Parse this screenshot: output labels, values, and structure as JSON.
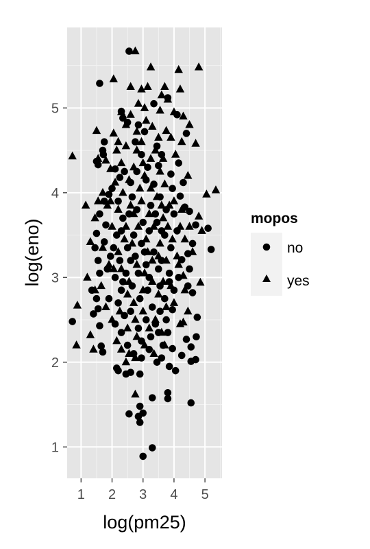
{
  "chart_data": {
    "type": "scatter",
    "title": "",
    "xlabel": "log(pm25)",
    "ylabel": "log(eno)",
    "xlim": [
      0.55,
      5.55
    ],
    "ylim": [
      0.63,
      5.95
    ],
    "xticks": [
      1,
      2,
      3,
      4,
      5
    ],
    "yticks": [
      1,
      2,
      3,
      4,
      5
    ],
    "grid": true,
    "panel_background": "#e5e5e5",
    "grid_color": "#ffffff",
    "point_color": "#000000",
    "legend": {
      "title": "mopos",
      "position": "right",
      "entries": [
        {
          "label": "no",
          "shape": "circle"
        },
        {
          "label": "yes",
          "shape": "triangle"
        }
      ]
    },
    "series": [
      {
        "name": "no",
        "shape": "circle",
        "points": [
          [
            2.55,
            5.67
          ],
          [
            1.6,
            5.29
          ],
          [
            2.3,
            4.96
          ],
          [
            2.35,
            4.88
          ],
          [
            2.5,
            4.83
          ],
          [
            2.85,
            4.8
          ],
          [
            3.35,
            5.05
          ],
          [
            3.8,
            5.12
          ],
          [
            4.1,
            4.92
          ],
          [
            4.4,
            4.7
          ],
          [
            1.75,
            4.6
          ],
          [
            1.7,
            4.5
          ],
          [
            1.72,
            4.45
          ],
          [
            1.5,
            4.37
          ],
          [
            1.55,
            4.33
          ],
          [
            2.1,
            4.28
          ],
          [
            2.25,
            4.18
          ],
          [
            2.6,
            4.12
          ],
          [
            3.1,
            4.15
          ],
          [
            3.5,
            4.32
          ],
          [
            3.9,
            4.22
          ],
          [
            4.3,
            4.12
          ],
          [
            4.2,
            3.96
          ],
          [
            4.35,
            3.83
          ],
          [
            4.5,
            3.78
          ],
          [
            4.7,
            3.62
          ],
          [
            5.1,
            3.58
          ],
          [
            5.2,
            3.33
          ],
          [
            4.6,
            3.4
          ],
          [
            4.45,
            3.28
          ],
          [
            4.25,
            3.21
          ],
          [
            4.5,
            3.1
          ],
          [
            4.45,
            2.9
          ],
          [
            4.6,
            2.82
          ],
          [
            4.75,
            2.53
          ],
          [
            4.72,
            2.3
          ],
          [
            4.4,
            2.27
          ],
          [
            4.55,
            2.18
          ],
          [
            4.7,
            2.03
          ],
          [
            4.55,
            2.01
          ],
          [
            4.25,
            2.08
          ],
          [
            3.95,
            2.16
          ],
          [
            4.05,
            1.9
          ],
          [
            3.85,
            1.95
          ],
          [
            4.55,
            1.52
          ],
          [
            3.8,
            1.64
          ],
          [
            3.8,
            1.57
          ],
          [
            3.3,
            1.58
          ],
          [
            3.0,
            1.4
          ],
          [
            2.9,
            1.48
          ],
          [
            2.85,
            1.36
          ],
          [
            2.9,
            1.29
          ],
          [
            3.3,
            0.99
          ],
          [
            3.0,
            0.89
          ],
          [
            2.55,
            1.39
          ],
          [
            2.6,
            1.88
          ],
          [
            2.9,
            1.86
          ],
          [
            2.45,
            1.86
          ],
          [
            2.2,
            1.9
          ],
          [
            2.15,
            1.93
          ],
          [
            1.7,
            2.12
          ],
          [
            1.65,
            2.19
          ],
          [
            1.6,
            2.43
          ],
          [
            1.4,
            2.57
          ],
          [
            1.55,
            2.63
          ],
          [
            0.72,
            2.48
          ],
          [
            1.5,
            2.75
          ],
          [
            1.35,
            2.85
          ],
          [
            1.6,
            3.05
          ],
          [
            1.55,
            3.2
          ],
          [
            1.45,
            3.35
          ],
          [
            1.75,
            3.42
          ],
          [
            1.5,
            3.52
          ],
          [
            1.8,
            3.62
          ],
          [
            1.6,
            3.75
          ],
          [
            1.75,
            3.9
          ],
          [
            1.9,
            3.98
          ],
          [
            2.0,
            4.05
          ],
          [
            2.2,
            3.9
          ],
          [
            2.35,
            3.7
          ],
          [
            2.15,
            3.5
          ],
          [
            2.05,
            3.35
          ],
          [
            2.25,
            3.2
          ],
          [
            2.1,
            3.0
          ],
          [
            2.3,
            2.85
          ],
          [
            2.2,
            2.7
          ],
          [
            2.4,
            2.55
          ],
          [
            2.1,
            2.45
          ],
          [
            2.3,
            2.35
          ],
          [
            2.5,
            2.2
          ],
          [
            2.7,
            2.1
          ],
          [
            2.95,
            2.05
          ],
          [
            3.2,
            2.15
          ],
          [
            3.45,
            2.0
          ],
          [
            3.65,
            2.2
          ],
          [
            3.5,
            2.35
          ],
          [
            3.75,
            2.5
          ],
          [
            3.95,
            2.62
          ],
          [
            3.7,
            2.75
          ],
          [
            3.55,
            2.9
          ],
          [
            3.85,
            3.05
          ],
          [
            3.6,
            3.2
          ],
          [
            3.9,
            3.35
          ],
          [
            3.7,
            3.5
          ],
          [
            3.45,
            3.65
          ],
          [
            3.75,
            3.8
          ],
          [
            3.55,
            3.95
          ],
          [
            3.35,
            4.1
          ],
          [
            3.15,
            4.3
          ],
          [
            2.95,
            4.45
          ],
          [
            2.75,
            4.6
          ],
          [
            3.05,
            4.72
          ],
          [
            3.45,
            4.55
          ],
          [
            3.6,
            4.45
          ],
          [
            2.65,
            3.95
          ],
          [
            2.8,
            3.8
          ],
          [
            3.0,
            3.65
          ],
          [
            2.7,
            3.5
          ],
          [
            2.95,
            3.4
          ],
          [
            3.2,
            3.55
          ],
          [
            3.35,
            3.3
          ],
          [
            3.1,
            3.15
          ],
          [
            2.85,
            3.05
          ],
          [
            2.6,
            3.2
          ],
          [
            2.5,
            3.35
          ],
          [
            2.45,
            3.05
          ],
          [
            2.65,
            2.9
          ],
          [
            2.9,
            2.75
          ],
          [
            3.15,
            2.85
          ],
          [
            3.3,
            2.65
          ],
          [
            3.1,
            2.5
          ],
          [
            2.85,
            2.4
          ],
          [
            2.6,
            2.6
          ],
          [
            3.4,
            2.45
          ],
          [
            3.25,
            2.3
          ],
          [
            3.55,
            2.6
          ],
          [
            3.8,
            2.35
          ],
          [
            4.0,
            2.85
          ],
          [
            4.15,
            3.0
          ],
          [
            4.1,
            3.55
          ],
          [
            4.0,
            3.75
          ],
          [
            3.95,
            4.05
          ],
          [
            4.15,
            4.35
          ],
          [
            2.4,
            4.25
          ],
          [
            2.8,
            4.25
          ],
          [
            3.25,
            3.85
          ],
          [
            3.5,
            3.1
          ],
          [
            3.2,
            3.0
          ],
          [
            3.05,
            3.3
          ],
          [
            2.75,
            3.25
          ],
          [
            2.55,
            3.75
          ],
          [
            2.3,
            3.55
          ],
          [
            3.4,
            3.75
          ],
          [
            3.6,
            3.55
          ],
          [
            3.85,
            2.95
          ],
          [
            2.35,
            2.95
          ],
          [
            1.9,
            2.75
          ],
          [
            1.95,
            3.25
          ],
          [
            1.85,
            3.1
          ],
          [
            2.95,
            2.25
          ],
          [
            3.6,
            2.05
          ]
        ]
      },
      {
        "name": "yes",
        "shape": "triangle",
        "points": [
          [
            2.75,
            5.67
          ],
          [
            3.25,
            5.48
          ],
          [
            4.15,
            5.45
          ],
          [
            4.8,
            5.48
          ],
          [
            2.05,
            5.34
          ],
          [
            2.6,
            5.25
          ],
          [
            2.95,
            5.22
          ],
          [
            3.15,
            5.25
          ],
          [
            3.7,
            5.25
          ],
          [
            4.2,
            5.22
          ],
          [
            3.6,
            5.15
          ],
          [
            3.8,
            5.1
          ],
          [
            2.85,
            5.05
          ],
          [
            3.05,
            5.0
          ],
          [
            2.3,
            4.95
          ],
          [
            2.6,
            4.92
          ],
          [
            3.55,
            4.97
          ],
          [
            4.0,
            4.95
          ],
          [
            4.3,
            4.9
          ],
          [
            3.1,
            4.85
          ],
          [
            2.45,
            4.8
          ],
          [
            1.5,
            4.73
          ],
          [
            2.05,
            4.7
          ],
          [
            2.8,
            4.72
          ],
          [
            3.3,
            4.78
          ],
          [
            3.75,
            4.73
          ],
          [
            3.9,
            4.65
          ],
          [
            4.7,
            4.58
          ],
          [
            0.72,
            4.43
          ],
          [
            1.55,
            4.4
          ],
          [
            1.8,
            4.38
          ],
          [
            2.15,
            4.5
          ],
          [
            2.45,
            4.55
          ],
          [
            2.95,
            4.6
          ],
          [
            3.4,
            4.5
          ],
          [
            3.65,
            4.4
          ],
          [
            4.05,
            4.45
          ],
          [
            1.95,
            4.28
          ],
          [
            2.3,
            4.35
          ],
          [
            2.7,
            4.3
          ],
          [
            3.05,
            4.2
          ],
          [
            3.55,
            4.25
          ],
          [
            4.45,
            4.2
          ],
          [
            5.35,
            4.03
          ],
          [
            5.05,
            3.98
          ],
          [
            4.8,
            3.72
          ],
          [
            4.9,
            3.55
          ],
          [
            4.6,
            3.3
          ],
          [
            4.3,
            3.02
          ],
          [
            4.85,
            2.94
          ],
          [
            4.3,
            2.47
          ],
          [
            4.2,
            2.45
          ],
          [
            3.7,
            2.2
          ],
          [
            2.75,
            1.62
          ],
          [
            2.75,
            2.05
          ],
          [
            2.55,
            2.1
          ],
          [
            2.45,
            2.0
          ],
          [
            2.15,
            2.25
          ],
          [
            2.3,
            2.15
          ],
          [
            1.4,
            2.15
          ],
          [
            0.85,
            2.2
          ],
          [
            1.3,
            2.32
          ],
          [
            0.88,
            2.67
          ],
          [
            1.2,
            3.0
          ],
          [
            1.45,
            2.85
          ],
          [
            1.3,
            3.42
          ],
          [
            1.45,
            3.7
          ],
          [
            1.15,
            3.85
          ],
          [
            1.55,
            3.9
          ],
          [
            1.7,
            4.0
          ],
          [
            1.85,
            3.85
          ],
          [
            2.1,
            4.12
          ],
          [
            2.35,
            4.0
          ],
          [
            2.55,
            4.15
          ],
          [
            2.9,
            4.05
          ],
          [
            3.25,
            4.05
          ],
          [
            3.7,
            4.1
          ],
          [
            4.0,
            3.9
          ],
          [
            4.25,
            3.8
          ],
          [
            4.5,
            3.6
          ],
          [
            4.35,
            3.45
          ],
          [
            4.1,
            3.25
          ],
          [
            4.35,
            2.85
          ],
          [
            4.0,
            2.7
          ],
          [
            3.75,
            2.65
          ],
          [
            3.5,
            2.8
          ],
          [
            3.3,
            2.95
          ],
          [
            3.0,
            2.85
          ],
          [
            2.7,
            2.7
          ],
          [
            2.5,
            2.8
          ],
          [
            2.25,
            2.6
          ],
          [
            2.0,
            2.5
          ],
          [
            1.8,
            2.65
          ],
          [
            1.65,
            2.9
          ],
          [
            1.9,
            3.15
          ],
          [
            1.7,
            3.35
          ],
          [
            2.0,
            3.6
          ],
          [
            2.2,
            3.8
          ],
          [
            2.45,
            3.6
          ],
          [
            2.65,
            3.4
          ],
          [
            2.85,
            3.6
          ],
          [
            3.1,
            3.45
          ],
          [
            3.35,
            3.6
          ],
          [
            3.55,
            3.4
          ],
          [
            3.8,
            3.6
          ],
          [
            3.85,
            3.85
          ],
          [
            3.65,
            3.7
          ],
          [
            3.45,
            3.95
          ],
          [
            3.2,
            3.75
          ],
          [
            2.95,
            3.9
          ],
          [
            2.7,
            3.75
          ],
          [
            2.4,
            3.45
          ],
          [
            2.2,
            3.3
          ],
          [
            2.05,
            3.1
          ],
          [
            2.3,
            3.1
          ],
          [
            2.55,
            2.95
          ],
          [
            2.8,
            3.15
          ],
          [
            3.05,
            3.05
          ],
          [
            3.3,
            3.2
          ],
          [
            3.5,
            3.25
          ],
          [
            3.75,
            3.2
          ],
          [
            3.95,
            3.45
          ],
          [
            4.2,
            3.6
          ],
          [
            4.15,
            3.15
          ],
          [
            3.9,
            2.9
          ],
          [
            3.65,
            2.95
          ],
          [
            3.4,
            2.5
          ],
          [
            3.2,
            2.4
          ],
          [
            3.0,
            2.6
          ],
          [
            2.75,
            2.5
          ],
          [
            2.5,
            2.4
          ],
          [
            2.8,
            2.3
          ],
          [
            3.05,
            2.2
          ],
          [
            3.35,
            2.1
          ],
          [
            3.6,
            2.35
          ],
          [
            4.45,
            2.6
          ],
          [
            2.6,
            3.85
          ],
          [
            3.0,
            4.35
          ],
          [
            3.25,
            4.4
          ],
          [
            2.8,
            4.5
          ],
          [
            3.5,
            4.65
          ],
          [
            4.25,
            4.6
          ],
          [
            4.5,
            4.8
          ],
          [
            2.2,
            4.6
          ],
          [
            1.95,
            3.9
          ],
          [
            3.6,
            3.85
          ],
          [
            3.15,
            3.3
          ]
        ]
      }
    ]
  }
}
